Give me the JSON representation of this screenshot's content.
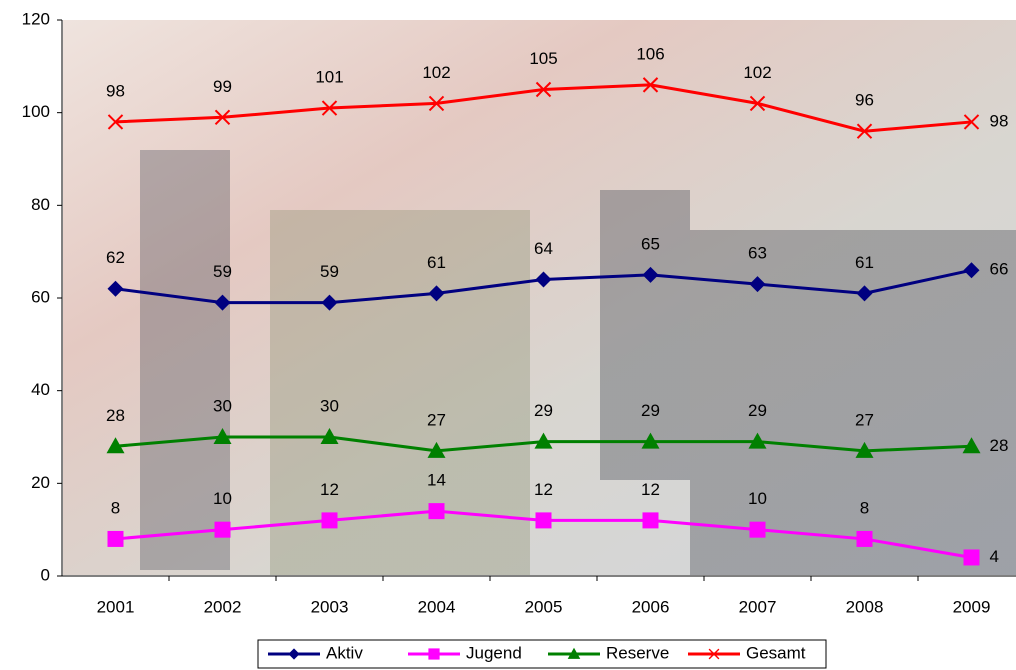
{
  "chart_data": {
    "type": "line",
    "categories": [
      "2001",
      "2002",
      "2003",
      "2004",
      "2005",
      "2006",
      "2007",
      "2008",
      "2009"
    ],
    "series": [
      {
        "name": "Aktiv",
        "color": "#000080",
        "marker": "diamond",
        "values": [
          62,
          59,
          59,
          61,
          64,
          65,
          63,
          61,
          66
        ]
      },
      {
        "name": "Jugend",
        "color": "#ff00ff",
        "marker": "square",
        "values": [
          8,
          10,
          12,
          14,
          12,
          12,
          10,
          8,
          4
        ]
      },
      {
        "name": "Reserve",
        "color": "#008000",
        "marker": "triangle",
        "values": [
          28,
          30,
          30,
          27,
          29,
          29,
          29,
          27,
          28
        ]
      },
      {
        "name": "Gesamt",
        "color": "#ff0000",
        "marker": "x",
        "values": [
          98,
          99,
          101,
          102,
          105,
          106,
          102,
          96,
          98
        ]
      }
    ],
    "ylim": [
      0,
      120
    ],
    "yticks": [
      0,
      20,
      40,
      60,
      80,
      100,
      120
    ],
    "legend": "bottom"
  }
}
